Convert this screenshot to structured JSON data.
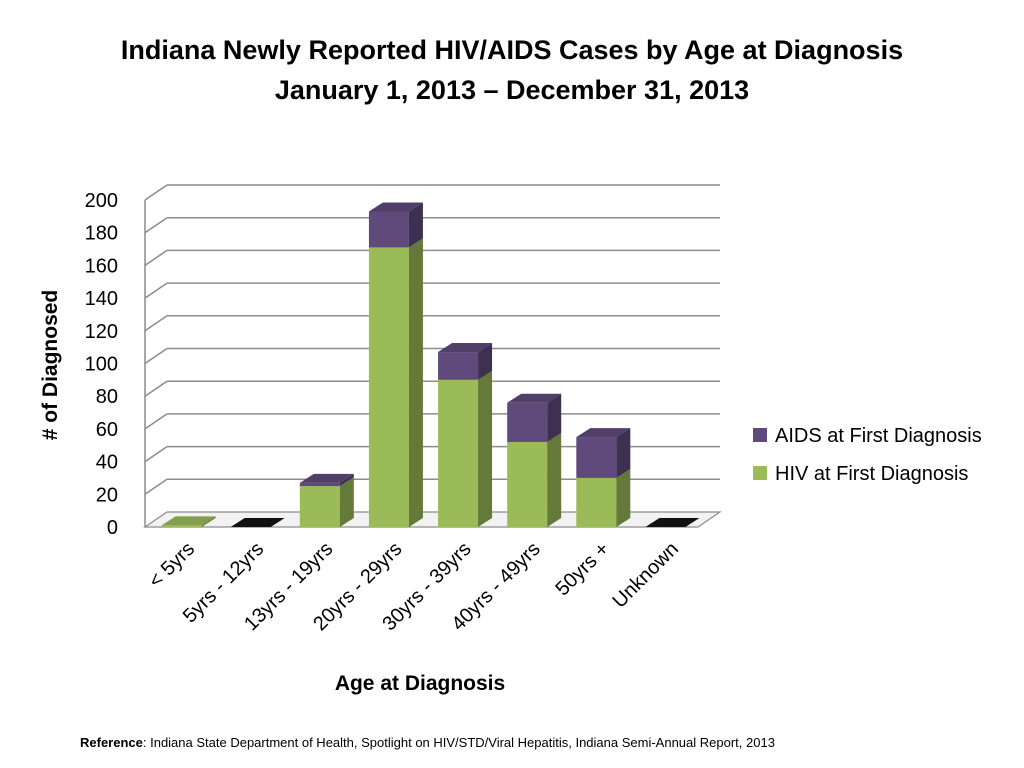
{
  "chart_data": {
    "type": "bar",
    "stacked": true,
    "style": "3d",
    "title": "Indiana Newly Reported HIV/AIDS Cases by Age at Diagnosis",
    "subtitle": "January 1, 2013 – December 31, 2013",
    "xlabel": "Age at Diagnosis",
    "ylabel": "# of Diagnosed",
    "ylim": [
      0,
      200
    ],
    "yticks": [
      0,
      20,
      40,
      60,
      80,
      100,
      120,
      140,
      160,
      180,
      200
    ],
    "grid": true,
    "legend_position": "right",
    "categories": [
      "< 5yrs",
      "5yrs - 12yrs",
      "13yrs - 19yrs",
      "20yrs - 29yrs",
      "30yrs - 39yrs",
      "40yrs - 49yrs",
      "50yrs +",
      "Unknown"
    ],
    "series": [
      {
        "name": "HIV at First Diagnosis",
        "color": "#9bbb59",
        "values": [
          1,
          0,
          25,
          171,
          90,
          52,
          30,
          0
        ]
      },
      {
        "name": "AIDS at First Diagnosis",
        "color": "#604a7b",
        "values": [
          0,
          0,
          2,
          22,
          17,
          24,
          25,
          0
        ]
      }
    ]
  },
  "reference": {
    "label": "Reference",
    "text": ":  Indiana State Department of Health, Spotlight on HIV/STD/Viral Hepatitis, Indiana Semi-Annual Report, 2013"
  }
}
